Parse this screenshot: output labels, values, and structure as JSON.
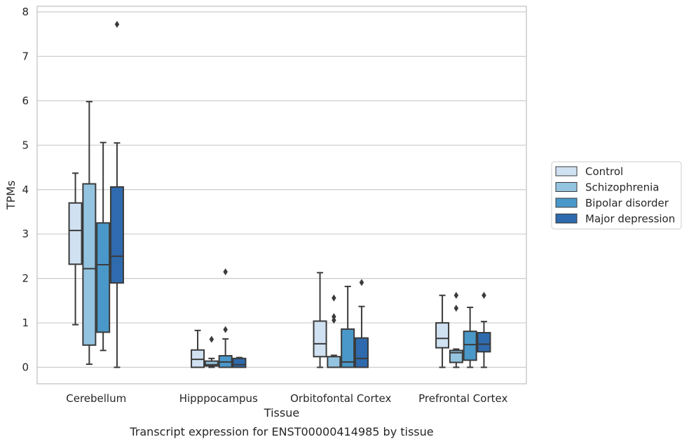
{
  "chart_data": {
    "type": "box",
    "title": "",
    "caption": "Transcript expression for ENST00000414985 by tissue",
    "xlabel": "Tissue",
    "ylabel": "TPMs",
    "ylim": [
      -0.38,
      8.1
    ],
    "yticks": [
      0,
      1,
      2,
      3,
      4,
      5,
      6,
      7,
      8
    ],
    "grid": "horizontal",
    "legend_position": "right",
    "categories": [
      "Cerebellum",
      "Hipppocampus",
      "Orbitofontal Cortex",
      "Prefrontal Cortex"
    ],
    "series": [
      {
        "name": "Control",
        "color": "#d0e1f2",
        "boxes": [
          {
            "whisker_low": 0.96,
            "q1": 2.32,
            "median": 3.08,
            "q3": 3.7,
            "whisker_high": 4.37,
            "outliers": []
          },
          {
            "whisker_low": 0.0,
            "q1": 0.0,
            "median": 0.18,
            "q3": 0.39,
            "whisker_high": 0.83,
            "outliers": []
          },
          {
            "whisker_low": 0.0,
            "q1": 0.24,
            "median": 0.53,
            "q3": 1.04,
            "whisker_high": 2.13,
            "outliers": []
          },
          {
            "whisker_low": 0.0,
            "q1": 0.44,
            "median": 0.65,
            "q3": 1.0,
            "whisker_high": 1.62,
            "outliers": []
          }
        ]
      },
      {
        "name": "Schizophrenia",
        "color": "#94c4df",
        "boxes": [
          {
            "whisker_low": 0.07,
            "q1": 0.5,
            "median": 2.22,
            "q3": 4.13,
            "whisker_high": 5.98,
            "outliers": []
          },
          {
            "whisker_low": 0.0,
            "q1": 0.03,
            "median": 0.06,
            "q3": 0.14,
            "whisker_high": 0.2,
            "outliers": [
              0.63
            ]
          },
          {
            "whisker_low": 0.0,
            "q1": 0.0,
            "median": 0.0,
            "q3": 0.24,
            "whisker_high": 0.27,
            "outliers": [
              1.06,
              1.14,
              1.56
            ]
          },
          {
            "whisker_low": 0.0,
            "q1": 0.11,
            "median": 0.33,
            "q3": 0.38,
            "whisker_high": 0.41,
            "outliers": [
              1.33,
              1.62
            ]
          }
        ]
      },
      {
        "name": "Bipolar disorder",
        "color": "#4a98c9",
        "boxes": [
          {
            "whisker_low": 0.38,
            "q1": 0.79,
            "median": 2.31,
            "q3": 3.25,
            "whisker_high": 5.06,
            "outliers": []
          },
          {
            "whisker_low": 0.0,
            "q1": 0.0,
            "median": 0.12,
            "q3": 0.26,
            "whisker_high": 0.64,
            "outliers": [
              0.85,
              2.15
            ]
          },
          {
            "whisker_low": 0.0,
            "q1": 0.0,
            "median": 0.12,
            "q3": 0.86,
            "whisker_high": 1.82,
            "outliers": []
          },
          {
            "whisker_low": 0.0,
            "q1": 0.16,
            "median": 0.51,
            "q3": 0.81,
            "whisker_high": 1.35,
            "outliers": []
          }
        ]
      },
      {
        "name": "Major depression",
        "color": "#2e6aad",
        "boxes": [
          {
            "whisker_low": 0.0,
            "q1": 1.9,
            "median": 2.5,
            "q3": 4.06,
            "whisker_high": 5.05,
            "outliers": [
              7.72
            ]
          },
          {
            "whisker_low": 0.0,
            "q1": 0.0,
            "median": 0.06,
            "q3": 0.2,
            "whisker_high": 0.22,
            "outliers": []
          },
          {
            "whisker_low": 0.0,
            "q1": 0.0,
            "median": 0.2,
            "q3": 0.66,
            "whisker_high": 1.37,
            "outliers": [
              1.91
            ]
          },
          {
            "whisker_low": 0.0,
            "q1": 0.35,
            "median": 0.52,
            "q3": 0.78,
            "whisker_high": 1.03,
            "outliers": [
              1.62
            ]
          }
        ]
      }
    ]
  }
}
